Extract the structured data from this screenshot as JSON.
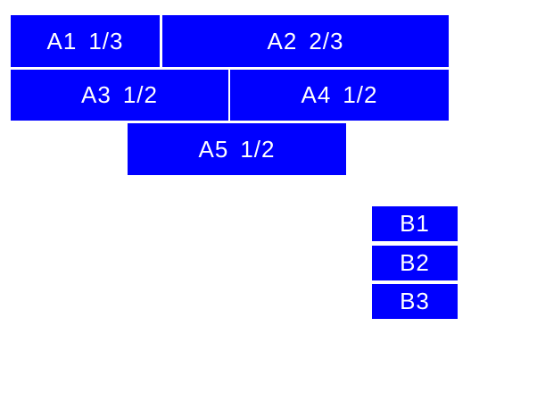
{
  "colors": {
    "box_fill": "#0000ff",
    "box_text": "#ffffff",
    "page_background": "#ffffff"
  },
  "flex_boxes": {
    "a1": {
      "name": "A1",
      "fraction": "1/3"
    },
    "a2": {
      "name": "A2",
      "fraction": "2/3"
    },
    "a3": {
      "name": "A3",
      "fraction": "1/2"
    },
    "a4": {
      "name": "A4",
      "fraction": "1/2"
    },
    "a5": {
      "name": "A5",
      "fraction": "1/2"
    },
    "b1": {
      "name": "B1"
    },
    "b2": {
      "name": "B2"
    },
    "b3": {
      "name": "B3"
    }
  }
}
